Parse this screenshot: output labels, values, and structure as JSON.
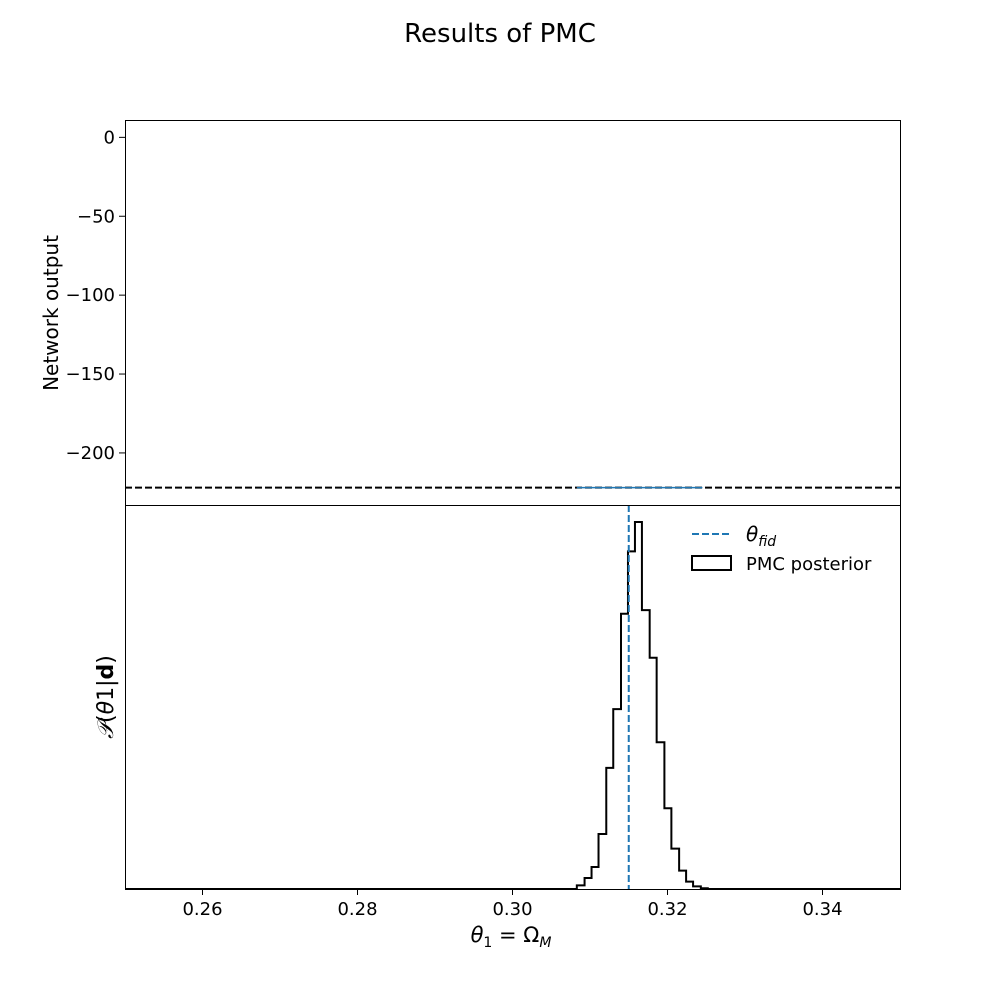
{
  "figure": {
    "title": "Results of PMC"
  },
  "chart_data": [
    {
      "type": "line",
      "ylabel": "Network output",
      "ylim": [
        -233,
        11
      ],
      "xlim": [
        0.25,
        0.35
      ],
      "y_ticks": [
        0,
        -50,
        -100,
        -150,
        -200
      ],
      "y_tick_labels": [
        "0",
        "−50",
        "−100",
        "−150",
        "−200"
      ],
      "reference_line": {
        "y": -222,
        "style": "dashed",
        "color": "#000000"
      },
      "series": [
        {
          "x": [
            0.3083,
            0.3245
          ],
          "y": [
            -222,
            -222
          ],
          "color": "#1f77b4"
        }
      ]
    },
    {
      "type": "histogram",
      "xlabel": "θ₁ = Ω_M",
      "xlim": [
        0.25,
        0.35
      ],
      "x_ticks": [
        0.26,
        0.28,
        0.3,
        0.32,
        0.34
      ],
      "x_tick_labels": [
        "0.26",
        "0.28",
        "0.30",
        "0.32",
        "0.34"
      ],
      "ylabel": "P(θ1|d)",
      "fiducial": {
        "x": 0.315,
        "color": "#1f77b4",
        "style": "dashed"
      },
      "bins": [
        {
          "x0": 0.3,
          "x1": 0.3083,
          "count": 0
        },
        {
          "x0": 0.3083,
          "x1": 0.3093,
          "count": 1
        },
        {
          "x0": 0.3093,
          "x1": 0.3102,
          "count": 3
        },
        {
          "x0": 0.3102,
          "x1": 0.3111,
          "count": 6
        },
        {
          "x0": 0.3111,
          "x1": 0.3121,
          "count": 15
        },
        {
          "x0": 0.3121,
          "x1": 0.313,
          "count": 33
        },
        {
          "x0": 0.313,
          "x1": 0.314,
          "count": 49
        },
        {
          "x0": 0.314,
          "x1": 0.3149,
          "count": 75
        },
        {
          "x0": 0.3149,
          "x1": 0.3158,
          "count": 92
        },
        {
          "x0": 0.3158,
          "x1": 0.3167,
          "count": 100
        },
        {
          "x0": 0.3167,
          "x1": 0.3177,
          "count": 76
        },
        {
          "x0": 0.3177,
          "x1": 0.3186,
          "count": 63
        },
        {
          "x0": 0.3186,
          "x1": 0.3196,
          "count": 40
        },
        {
          "x0": 0.3196,
          "x1": 0.3205,
          "count": 22
        },
        {
          "x0": 0.3205,
          "x1": 0.3215,
          "count": 11
        },
        {
          "x0": 0.3215,
          "x1": 0.3224,
          "count": 5
        },
        {
          "x0": 0.3224,
          "x1": 0.3233,
          "count": 2
        },
        {
          "x0": 0.3233,
          "x1": 0.3243,
          "count": 0.7
        },
        {
          "x0": 0.3243,
          "x1": 0.3252,
          "count": 0.2
        },
        {
          "x0": 0.3252,
          "x1": 0.35,
          "count": 0
        }
      ],
      "ylim": [
        0,
        100
      ],
      "legend": {
        "placement": "top-right",
        "fid_label_symbol": "θ",
        "fid_label_sub": "fid",
        "posterior_label": "PMC posterior"
      }
    }
  ]
}
